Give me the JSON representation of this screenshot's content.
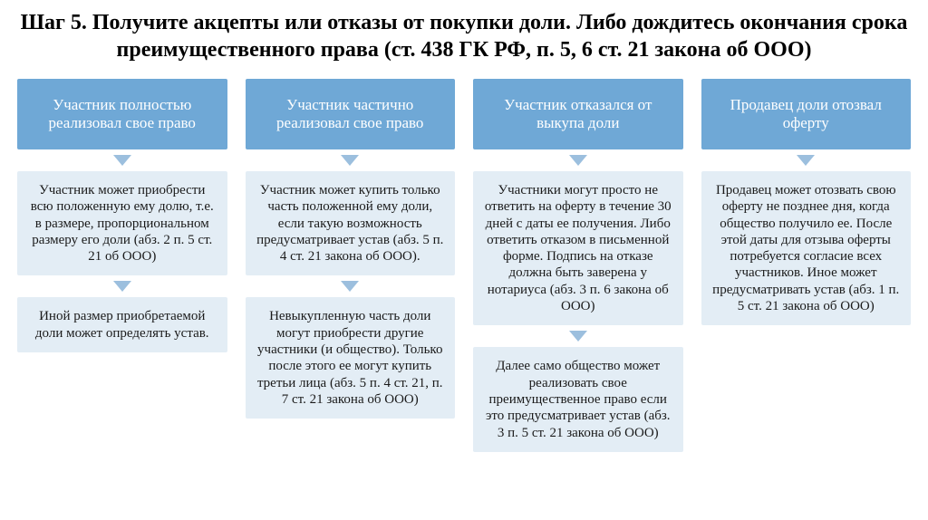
{
  "title": "Шаг 5. Получите акцепты или отказы от покупки доли. Либо дождитесь окончания срока преимущественного права (ст. 438 ГК РФ, п. 5, 6 ст. 21 закона об ООО)",
  "colors": {
    "header_bg": "#6fa8d6",
    "header_text": "#ffffff",
    "body_bg": "#e3edf5",
    "body_text": "#1a1a1a",
    "arrow": "#9cbfde",
    "title_color": "#000000"
  },
  "columns": [
    {
      "header": "Участник полностью реализовал свое право",
      "boxes": [
        "Участник может приобрести всю положенную ему долю, т.е. в размере, пропорциональном размеру его доли (абз. 2 п. 5 ст. 21 об ООО)",
        "Иной размер приобретаемой доли может определять устав."
      ]
    },
    {
      "header": "Участник частично реализовал свое право",
      "boxes": [
        "Участник может купить только часть положенной ему доли, если такую возможность предусматривает устав (абз. 5 п. 4 ст. 21 закона об ООО).",
        "Невыкупленную часть доли могут приобрести другие участники (и общество). Только после этого ее могут купить третьи лица (абз. 5 п. 4 ст. 21, п. 7 ст. 21 закона об ООО)"
      ]
    },
    {
      "header": "Участник отказался от выкупа доли",
      "boxes": [
        "Участники могут просто не ответить на оферту в течение 30 дней с даты ее получения. Либо ответить отказом в письменной форме. Подпись на отказе должна быть заверена у нотариуса (абз. 3 п. 6 закона об ООО)",
        "Далее само общество может реализовать свое преимущественное право если это предусматривает устав (абз. 3 п. 5 ст. 21 закона об ООО)"
      ]
    },
    {
      "header": "Продавец доли отозвал оферту",
      "boxes": [
        "Продавец может отозвать свою оферту не позднее дня, когда общество получило ее. После этой даты для отзыва оферты потребуется согласие всех участников. Иное может предусматривать устав (абз. 1 п. 5 ст. 21 закона об ООО)"
      ]
    }
  ]
}
